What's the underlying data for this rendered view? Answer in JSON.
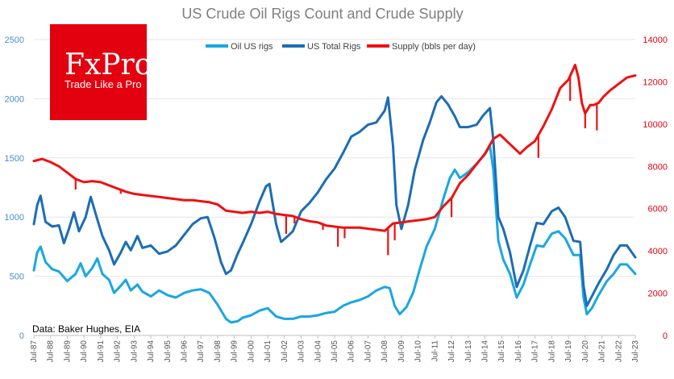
{
  "chart_data": {
    "type": "line",
    "title": "US Crude Oil Rigs Count and Crude Supply",
    "y_left": {
      "ticks": [
        "0",
        "500",
        "1000",
        "1500",
        "2000",
        "2500"
      ],
      "range": [
        0,
        2500
      ]
    },
    "y_right": {
      "ticks": [
        "0",
        "2000",
        "4000",
        "6000",
        "8000",
        "10000",
        "12000",
        "14000"
      ],
      "range": [
        0,
        14000
      ]
    },
    "x_ticks": [
      "Jul-87",
      "Jul-88",
      "Jul-89",
      "Jul-90",
      "Jul-91",
      "Jul-92",
      "Jul-93",
      "Jul-94",
      "Jul-95",
      "Jul-96",
      "Jul-97",
      "Jul-98",
      "Jul-99",
      "Jul-00",
      "Jul-01",
      "Jul-02",
      "Jul-03",
      "Jul-04",
      "Jul-05",
      "Jul-06",
      "Jul-07",
      "Jul-08",
      "Jul-09",
      "Jul-10",
      "Jul-11",
      "Jul-12",
      "Jul-13",
      "Jul-14",
      "Jul-15",
      "Jul-16",
      "Jul-17",
      "Jul-18",
      "Jul-19",
      "Jul-20",
      "Jul-21",
      "Jul-22",
      "Jul-23"
    ],
    "x_range": [
      1987.5,
      2023.5
    ],
    "series": [
      {
        "name": "Oil US rigs",
        "color": "#1aa7e0",
        "axis": "left",
        "points": [
          [
            1987.5,
            550
          ],
          [
            1987.7,
            700
          ],
          [
            1987.9,
            750
          ],
          [
            1988.2,
            620
          ],
          [
            1988.6,
            560
          ],
          [
            1989.0,
            540
          ],
          [
            1989.5,
            460
          ],
          [
            1990.0,
            520
          ],
          [
            1990.3,
            610
          ],
          [
            1990.6,
            500
          ],
          [
            1991.0,
            570
          ],
          [
            1991.3,
            650
          ],
          [
            1991.6,
            520
          ],
          [
            1992.0,
            470
          ],
          [
            1992.3,
            360
          ],
          [
            1992.7,
            420
          ],
          [
            1993.0,
            470
          ],
          [
            1993.3,
            380
          ],
          [
            1993.7,
            430
          ],
          [
            1994.0,
            370
          ],
          [
            1994.5,
            330
          ],
          [
            1995.0,
            380
          ],
          [
            1995.5,
            340
          ],
          [
            1996.0,
            320
          ],
          [
            1996.5,
            360
          ],
          [
            1997.0,
            380
          ],
          [
            1997.5,
            390
          ],
          [
            1998.0,
            360
          ],
          [
            1998.5,
            260
          ],
          [
            1999.0,
            140
          ],
          [
            1999.3,
            110
          ],
          [
            1999.7,
            120
          ],
          [
            2000.0,
            150
          ],
          [
            2000.5,
            170
          ],
          [
            2001.0,
            210
          ],
          [
            2001.5,
            230
          ],
          [
            2002.0,
            160
          ],
          [
            2002.5,
            140
          ],
          [
            2003.0,
            140
          ],
          [
            2003.5,
            160
          ],
          [
            2004.0,
            160
          ],
          [
            2004.5,
            170
          ],
          [
            2005.0,
            190
          ],
          [
            2005.5,
            200
          ],
          [
            2006.0,
            250
          ],
          [
            2006.5,
            280
          ],
          [
            2007.0,
            300
          ],
          [
            2007.5,
            330
          ],
          [
            2008.0,
            380
          ],
          [
            2008.5,
            410
          ],
          [
            2008.8,
            400
          ],
          [
            2009.1,
            250
          ],
          [
            2009.4,
            180
          ],
          [
            2009.8,
            240
          ],
          [
            2010.2,
            360
          ],
          [
            2010.6,
            560
          ],
          [
            2011.0,
            750
          ],
          [
            2011.5,
            900
          ],
          [
            2012.0,
            1150
          ],
          [
            2012.4,
            1330
          ],
          [
            2012.7,
            1400
          ],
          [
            2013.0,
            1330
          ],
          [
            2013.5,
            1380
          ],
          [
            2014.0,
            1450
          ],
          [
            2014.5,
            1530
          ],
          [
            2014.8,
            1600
          ],
          [
            2015.0,
            1400
          ],
          [
            2015.3,
            800
          ],
          [
            2015.6,
            640
          ],
          [
            2016.0,
            520
          ],
          [
            2016.4,
            320
          ],
          [
            2016.8,
            430
          ],
          [
            2017.2,
            600
          ],
          [
            2017.6,
            760
          ],
          [
            2018.0,
            750
          ],
          [
            2018.5,
            860
          ],
          [
            2018.9,
            880
          ],
          [
            2019.3,
            820
          ],
          [
            2019.8,
            680
          ],
          [
            2020.2,
            680
          ],
          [
            2020.4,
            320
          ],
          [
            2020.6,
            180
          ],
          [
            2020.9,
            230
          ],
          [
            2021.3,
            340
          ],
          [
            2021.8,
            460
          ],
          [
            2022.2,
            520
          ],
          [
            2022.6,
            600
          ],
          [
            2023.0,
            600
          ],
          [
            2023.5,
            520
          ]
        ]
      },
      {
        "name": "US Total Rigs",
        "color": "#1c6db5",
        "axis": "left",
        "points": [
          [
            1987.5,
            940
          ],
          [
            1987.7,
            1100
          ],
          [
            1987.9,
            1180
          ],
          [
            1988.2,
            960
          ],
          [
            1988.6,
            920
          ],
          [
            1989.0,
            930
          ],
          [
            1989.3,
            780
          ],
          [
            1989.6,
            900
          ],
          [
            1989.9,
            1040
          ],
          [
            1990.2,
            880
          ],
          [
            1990.6,
            1000
          ],
          [
            1990.9,
            1170
          ],
          [
            1991.3,
            980
          ],
          [
            1991.6,
            840
          ],
          [
            1992.0,
            720
          ],
          [
            1992.3,
            600
          ],
          [
            1992.7,
            700
          ],
          [
            1993.0,
            790
          ],
          [
            1993.3,
            720
          ],
          [
            1993.7,
            840
          ],
          [
            1994.0,
            740
          ],
          [
            1994.5,
            760
          ],
          [
            1995.0,
            690
          ],
          [
            1995.5,
            710
          ],
          [
            1996.0,
            760
          ],
          [
            1996.5,
            850
          ],
          [
            1997.0,
            940
          ],
          [
            1997.5,
            990
          ],
          [
            1997.9,
            1000
          ],
          [
            1998.3,
            830
          ],
          [
            1998.7,
            620
          ],
          [
            1999.0,
            520
          ],
          [
            1999.3,
            550
          ],
          [
            1999.7,
            690
          ],
          [
            2000.0,
            780
          ],
          [
            2000.5,
            940
          ],
          [
            2001.0,
            1130
          ],
          [
            2001.4,
            1260
          ],
          [
            2001.6,
            1280
          ],
          [
            2002.0,
            940
          ],
          [
            2002.3,
            790
          ],
          [
            2002.7,
            840
          ],
          [
            2003.0,
            880
          ],
          [
            2003.5,
            1050
          ],
          [
            2004.0,
            1120
          ],
          [
            2004.5,
            1210
          ],
          [
            2005.0,
            1320
          ],
          [
            2005.5,
            1410
          ],
          [
            2006.0,
            1540
          ],
          [
            2006.5,
            1680
          ],
          [
            2007.0,
            1720
          ],
          [
            2007.5,
            1780
          ],
          [
            2008.0,
            1800
          ],
          [
            2008.5,
            1900
          ],
          [
            2008.7,
            2010
          ],
          [
            2009.0,
            1600
          ],
          [
            2009.2,
            1100
          ],
          [
            2009.5,
            900
          ],
          [
            2009.9,
            1100
          ],
          [
            2010.3,
            1400
          ],
          [
            2010.8,
            1650
          ],
          [
            2011.2,
            1800
          ],
          [
            2011.6,
            1970
          ],
          [
            2011.9,
            2020
          ],
          [
            2012.3,
            1950
          ],
          [
            2012.7,
            1850
          ],
          [
            2013.0,
            1760
          ],
          [
            2013.5,
            1760
          ],
          [
            2014.0,
            1780
          ],
          [
            2014.4,
            1860
          ],
          [
            2014.8,
            1920
          ],
          [
            2015.0,
            1650
          ],
          [
            2015.3,
            1000
          ],
          [
            2015.6,
            900
          ],
          [
            2016.0,
            700
          ],
          [
            2016.4,
            410
          ],
          [
            2016.8,
            550
          ],
          [
            2017.2,
            760
          ],
          [
            2017.6,
            950
          ],
          [
            2018.0,
            940
          ],
          [
            2018.5,
            1050
          ],
          [
            2018.9,
            1080
          ],
          [
            2019.3,
            1000
          ],
          [
            2019.8,
            800
          ],
          [
            2020.2,
            790
          ],
          [
            2020.4,
            420
          ],
          [
            2020.6,
            250
          ],
          [
            2020.9,
            330
          ],
          [
            2021.3,
            440
          ],
          [
            2021.8,
            560
          ],
          [
            2022.2,
            680
          ],
          [
            2022.6,
            760
          ],
          [
            2023.0,
            760
          ],
          [
            2023.5,
            660
          ]
        ]
      },
      {
        "name": "Supply (bbls per day)",
        "color": "#ee1111",
        "axis": "right",
        "points": [
          [
            1987.5,
            8250
          ],
          [
            1988.0,
            8350
          ],
          [
            1988.5,
            8200
          ],
          [
            1989.0,
            8000
          ],
          [
            1989.5,
            7700
          ],
          [
            1990.0,
            7400
          ],
          [
            1990.5,
            7250
          ],
          [
            1991.0,
            7300
          ],
          [
            1991.5,
            7250
          ],
          [
            1992.0,
            7100
          ],
          [
            1992.5,
            6950
          ],
          [
            1993.0,
            6800
          ],
          [
            1993.5,
            6700
          ],
          [
            1994.0,
            6650
          ],
          [
            1994.5,
            6600
          ],
          [
            1995.0,
            6550
          ],
          [
            1995.5,
            6500
          ],
          [
            1996.0,
            6450
          ],
          [
            1996.5,
            6400
          ],
          [
            1997.0,
            6400
          ],
          [
            1997.5,
            6350
          ],
          [
            1998.0,
            6300
          ],
          [
            1998.5,
            6200
          ],
          [
            1999.0,
            5900
          ],
          [
            1999.5,
            5850
          ],
          [
            2000.0,
            5800
          ],
          [
            2000.5,
            5850
          ],
          [
            2001.0,
            5800
          ],
          [
            2001.5,
            5850
          ],
          [
            2002.0,
            5750
          ],
          [
            2002.5,
            5700
          ],
          [
            2003.0,
            5650
          ],
          [
            2003.5,
            5500
          ],
          [
            2004.0,
            5400
          ],
          [
            2004.5,
            5350
          ],
          [
            2005.0,
            5200
          ],
          [
            2005.5,
            5150
          ],
          [
            2006.0,
            5100
          ],
          [
            2006.5,
            5100
          ],
          [
            2007.0,
            5100
          ],
          [
            2007.5,
            5050
          ],
          [
            2008.0,
            5000
          ],
          [
            2008.5,
            4950
          ],
          [
            2009.0,
            5300
          ],
          [
            2009.5,
            5350
          ],
          [
            2010.0,
            5400
          ],
          [
            2010.5,
            5450
          ],
          [
            2011.0,
            5500
          ],
          [
            2011.5,
            5600
          ],
          [
            2012.0,
            6100
          ],
          [
            2012.5,
            6500
          ],
          [
            2013.0,
            7200
          ],
          [
            2013.5,
            7600
          ],
          [
            2014.0,
            8100
          ],
          [
            2014.5,
            8600
          ],
          [
            2015.0,
            9300
          ],
          [
            2015.4,
            9500
          ],
          [
            2015.8,
            9200
          ],
          [
            2016.2,
            8900
          ],
          [
            2016.6,
            8600
          ],
          [
            2017.0,
            8900
          ],
          [
            2017.5,
            9200
          ],
          [
            2018.0,
            9900
          ],
          [
            2018.5,
            10700
          ],
          [
            2019.0,
            11700
          ],
          [
            2019.5,
            12100
          ],
          [
            2019.9,
            12800
          ],
          [
            2020.1,
            12200
          ],
          [
            2020.3,
            11000
          ],
          [
            2020.5,
            10500
          ],
          [
            2020.8,
            10900
          ],
          [
            2021.0,
            10900
          ],
          [
            2021.3,
            11000
          ],
          [
            2021.6,
            11300
          ],
          [
            2022.0,
            11600
          ],
          [
            2022.5,
            11900
          ],
          [
            2023.0,
            12200
          ],
          [
            2023.5,
            12300
          ]
        ],
        "spikes": [
          [
            1990.0,
            6900
          ],
          [
            1992.7,
            6700
          ],
          [
            2002.6,
            4800
          ],
          [
            2003.1,
            5300
          ],
          [
            2004.8,
            5000
          ],
          [
            2005.7,
            4200
          ],
          [
            2006.1,
            4600
          ],
          [
            2008.7,
            3800
          ],
          [
            2009.1,
            4500
          ],
          [
            2012.5,
            5600
          ],
          [
            2017.7,
            8400
          ],
          [
            2019.6,
            11100
          ],
          [
            2020.5,
            9800
          ],
          [
            2021.2,
            9700
          ]
        ]
      }
    ],
    "legend_placement": "top-center",
    "grid": "horizontal",
    "source_note": "Data: Baker Hughes, EIA"
  },
  "logo": {
    "title": "FxPro",
    "subtitle": "Trade Like a Pro",
    "color": "#e3000f"
  }
}
